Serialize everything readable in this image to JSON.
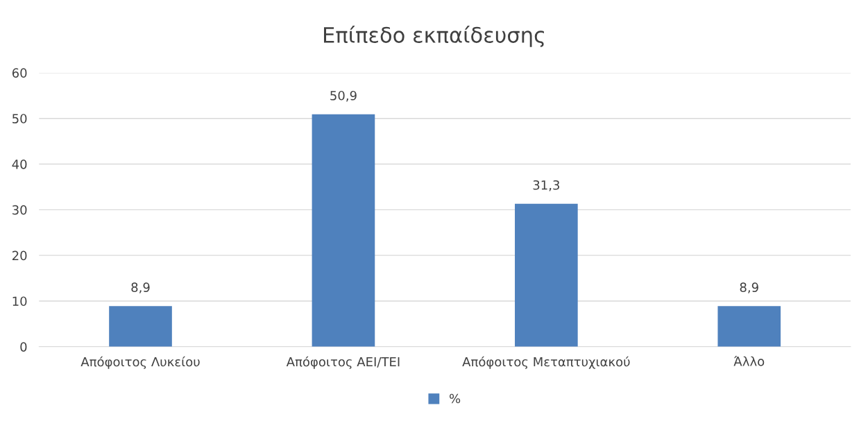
{
  "chart_data": {
    "type": "bar",
    "title": "Επίπεδο εκπαίδευσης",
    "categories": [
      "Απόφοιτος Λυκείου",
      "Απόφοιτος ΑΕΙ/ΤΕΙ",
      "Απόφοιτος Μεταπτυχιακού",
      "Άλλο"
    ],
    "series": [
      {
        "name": "%",
        "color": "#4f81bd",
        "values": [
          8.9,
          50.9,
          31.3,
          8.9
        ],
        "value_labels": [
          "8,9",
          "50,9",
          "31,3",
          "8,9"
        ]
      }
    ],
    "ylim": [
      0,
      60
    ],
    "yticks": [
      0,
      10,
      20,
      30,
      40,
      50,
      60
    ],
    "grid": "y",
    "legend": "bottom"
  }
}
